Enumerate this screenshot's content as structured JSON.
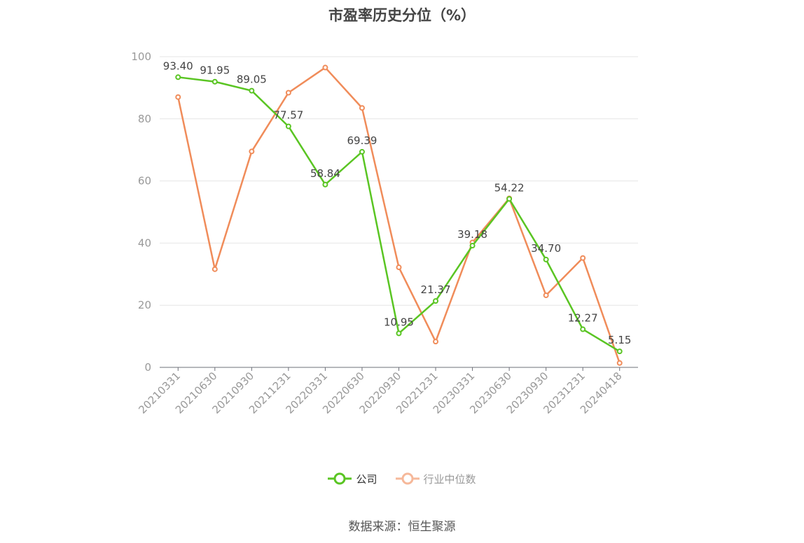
{
  "title": "市盈率历史分位（%）",
  "source": "数据来源：恒生聚源",
  "chart_data": {
    "type": "line",
    "title": "市盈率历史分位（%）",
    "categories": [
      "20210331",
      "20210630",
      "20210930",
      "20211231",
      "20220331",
      "20220630",
      "20220930",
      "20221231",
      "20230331",
      "20230630",
      "20230930",
      "20231231",
      "20240418"
    ],
    "ylim": [
      0,
      100
    ],
    "yticks": [
      0,
      20,
      40,
      60,
      80,
      100
    ],
    "grid": true,
    "legend_position": "bottom",
    "series": [
      {
        "name": "公司",
        "color": "#5ac523",
        "show_labels": true,
        "values": [
          93.4,
          91.95,
          89.05,
          77.57,
          58.84,
          69.39,
          10.95,
          21.37,
          39.18,
          54.22,
          34.7,
          12.27,
          5.15
        ],
        "labels": [
          "93.40",
          "91.95",
          "89.05",
          "77.57",
          "58.84",
          "69.39",
          "10.95",
          "21.37",
          "39.18",
          "54.22",
          "34.70",
          "12.27",
          "5.15"
        ]
      },
      {
        "name": "行业中位数",
        "color": "#f08c5a",
        "show_labels": false,
        "values": [
          87.0,
          31.6,
          69.5,
          88.4,
          96.5,
          83.5,
          32.2,
          8.3,
          40.2,
          54.4,
          23.2,
          35.2,
          1.4
        ]
      }
    ]
  }
}
